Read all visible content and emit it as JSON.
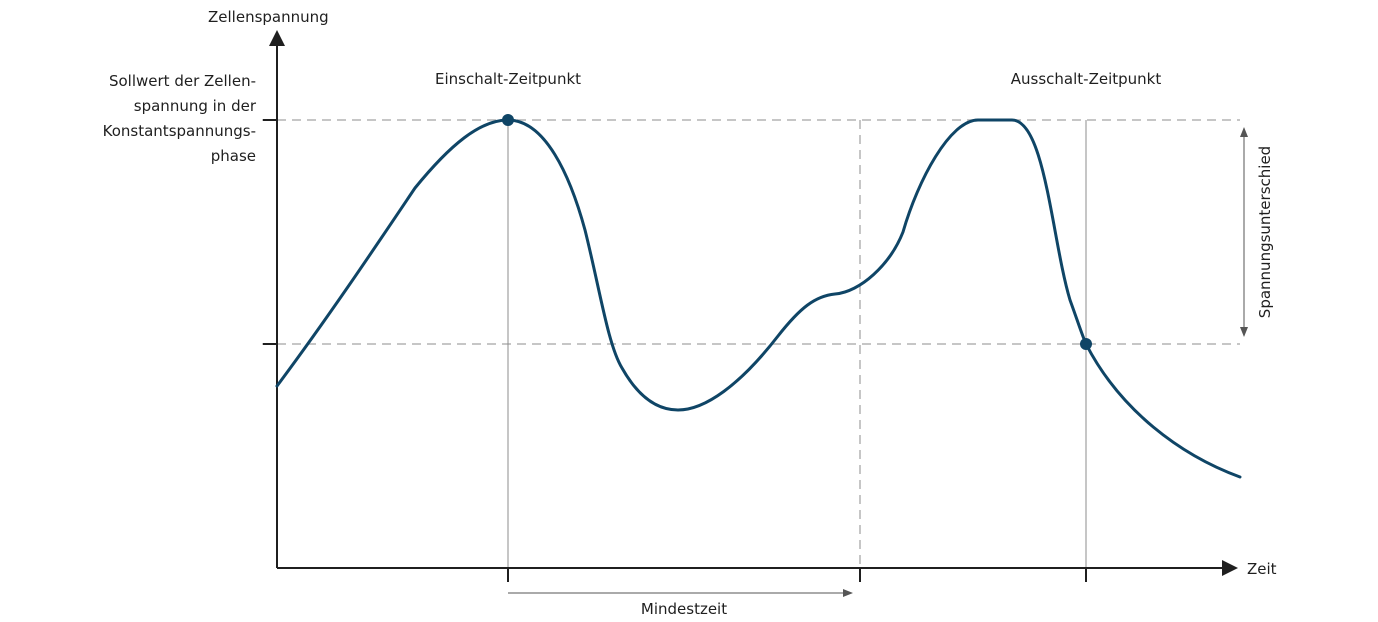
{
  "y_axis_label": "Zellenspannung",
  "x_axis_label": "Zeit",
  "setpoint_label": [
    "Sollwert der Zellen-",
    "spannung in der",
    "Konstantspannungs-",
    "phase"
  ],
  "switch_on_label": "Einschalt-Zeitpunkt",
  "switch_off_label": "Ausschalt-Zeitpunkt",
  "min_time_label": "Mindestzeit",
  "voltage_difference_label": "Spannungsunterschied",
  "colors": {
    "curve": "#0f4566",
    "axis": "#1f1f1f",
    "dashed_guides": "#b3b3b3"
  }
}
